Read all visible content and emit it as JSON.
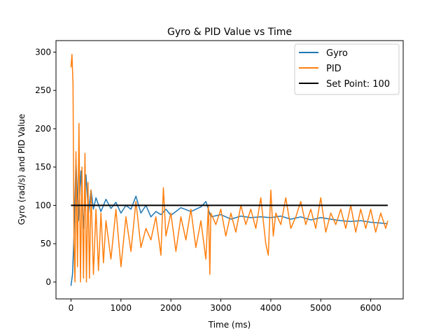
{
  "chart_data": {
    "type": "line",
    "title": "Gyro & PID Value vs Time",
    "xlabel": "Time (ms)",
    "ylabel": "Gyro (rad/s) and PID Value",
    "xlim": [
      -300,
      6650
    ],
    "ylim": [
      -22,
      315
    ],
    "xticks": [
      0,
      1000,
      2000,
      3000,
      4000,
      5000,
      6000
    ],
    "yticks": [
      0,
      50,
      100,
      150,
      200,
      250,
      300
    ],
    "legend_position": "top-right",
    "series": [
      {
        "name": "Gyro",
        "color": "#1f77b4",
        "x": [
          0,
          30,
          60,
          100,
          150,
          200,
          250,
          300,
          350,
          400,
          450,
          500,
          600,
          700,
          800,
          900,
          1000,
          1100,
          1200,
          1300,
          1400,
          1500,
          1600,
          1700,
          1800,
          1900,
          2000,
          2200,
          2400,
          2600,
          2700,
          2800,
          3000,
          3200,
          3400,
          3600,
          3800,
          4000,
          4200,
          4400,
          4600,
          4800,
          5000,
          5200,
          5400,
          5600,
          5800,
          6000,
          6200,
          6340
        ],
        "values": [
          -5,
          10,
          60,
          160,
          80,
          145,
          70,
          140,
          90,
          120,
          95,
          110,
          92,
          108,
          96,
          104,
          90,
          100,
          95,
          112,
          90,
          100,
          85,
          92,
          88,
          95,
          87,
          97,
          92,
          98,
          105,
          85,
          88,
          82,
          86,
          84,
          85,
          84,
          86,
          82,
          85,
          81,
          84,
          82,
          80,
          79,
          80,
          78,
          77,
          76
        ]
      },
      {
        "name": "PID",
        "color": "#ff7f0e",
        "x": [
          0,
          20,
          40,
          60,
          80,
          100,
          130,
          160,
          190,
          220,
          250,
          280,
          310,
          340,
          370,
          400,
          450,
          500,
          550,
          600,
          650,
          700,
          800,
          900,
          1000,
          1100,
          1200,
          1300,
          1400,
          1500,
          1600,
          1700,
          1800,
          1850,
          1900,
          2000,
          2100,
          2200,
          2300,
          2400,
          2500,
          2600,
          2700,
          2750,
          2780,
          2800,
          2900,
          3000,
          3100,
          3200,
          3300,
          3400,
          3500,
          3600,
          3700,
          3800,
          3900,
          3950,
          4000,
          4050,
          4100,
          4200,
          4300,
          4400,
          4500,
          4600,
          4700,
          4800,
          4900,
          5000,
          5100,
          5200,
          5300,
          5400,
          5500,
          5600,
          5700,
          5800,
          5900,
          6000,
          6100,
          6200,
          6300,
          6340
        ],
        "values": [
          280,
          297,
          260,
          50,
          0,
          170,
          20,
          207,
          0,
          150,
          5,
          168,
          0,
          130,
          5,
          120,
          10,
          95,
          15,
          90,
          25,
          80,
          30,
          95,
          20,
          85,
          40,
          105,
          45,
          70,
          55,
          85,
          35,
          123,
          60,
          90,
          40,
          85,
          55,
          95,
          45,
          80,
          30,
          100,
          10,
          90,
          75,
          95,
          60,
          90,
          65,
          100,
          75,
          95,
          70,
          110,
          50,
          35,
          120,
          60,
          90,
          75,
          110,
          70,
          85,
          105,
          75,
          95,
          70,
          110,
          65,
          90,
          75,
          95,
          70,
          100,
          65,
          95,
          70,
          95,
          65,
          90,
          70,
          80
        ]
      },
      {
        "name": "Set Point: 100",
        "color": "#000000",
        "x": [
          0,
          6340
        ],
        "values": [
          100,
          100
        ]
      }
    ]
  }
}
